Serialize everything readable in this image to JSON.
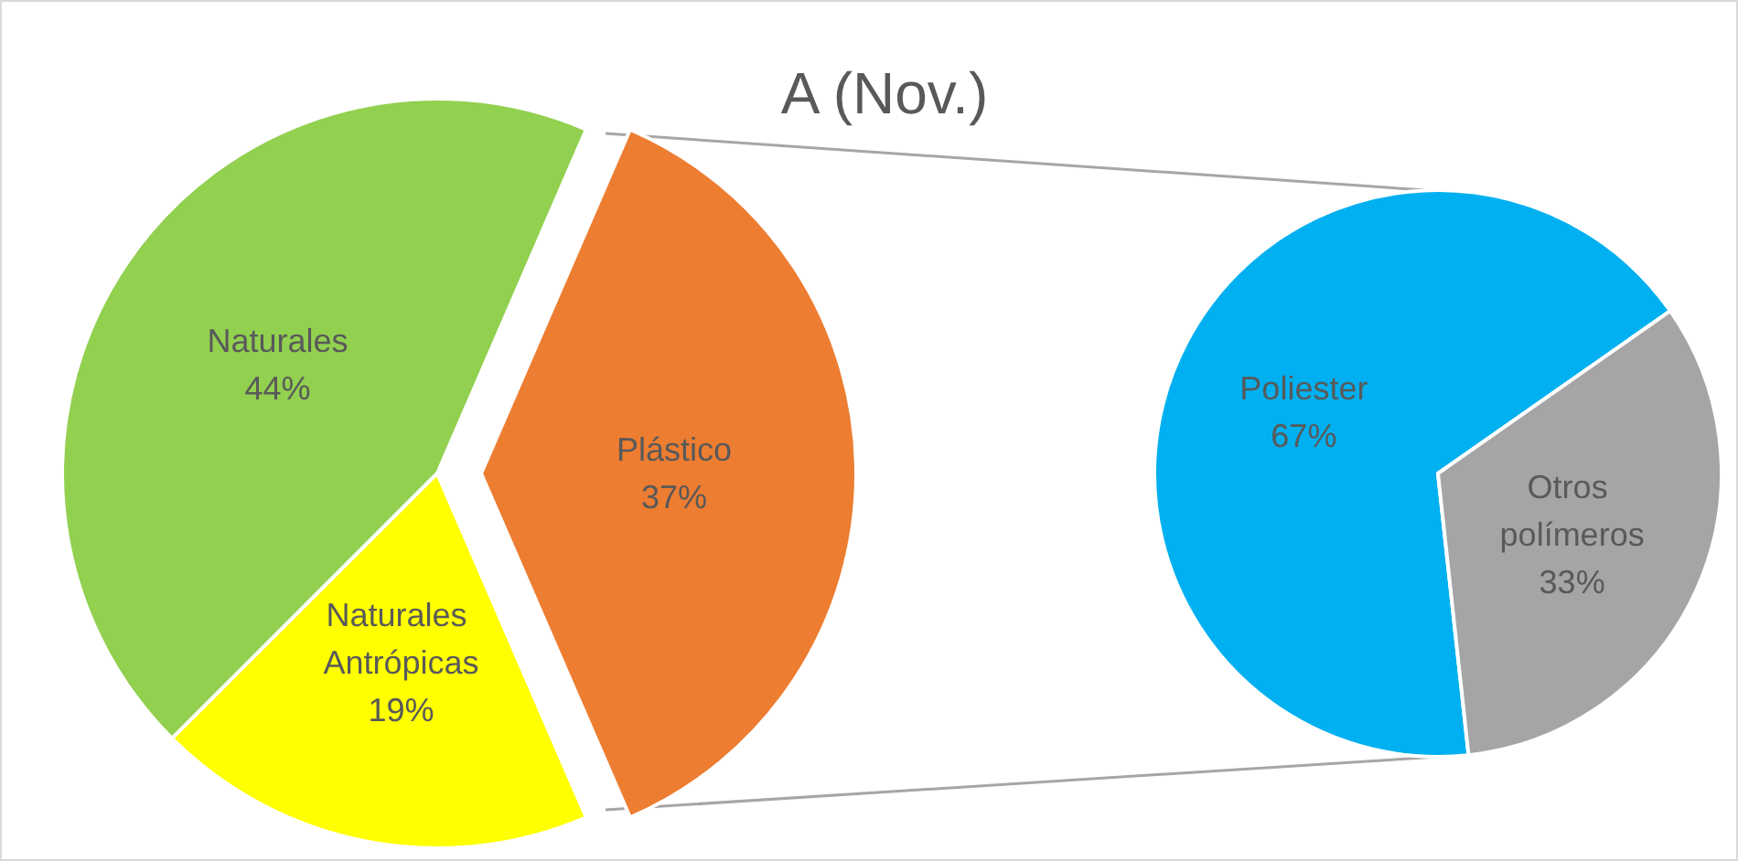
{
  "chart_data": [
    {
      "type": "pie",
      "title": "A (Nov.)",
      "categories": [
        "Naturales",
        "Naturales Antrópicas",
        "Plástico"
      ],
      "values": [
        44,
        19,
        37
      ],
      "colors": [
        "#92d050",
        "#ffff00",
        "#ed7d31"
      ],
      "value_labels": [
        "44%",
        "19%",
        "37%"
      ]
    },
    {
      "type": "pie",
      "categories": [
        "Poliester",
        "Otros polímeros"
      ],
      "values": [
        67,
        33
      ],
      "colors": [
        "#00b0f0",
        "#a5a5a5"
      ],
      "value_labels": [
        "67%",
        "33%"
      ]
    }
  ]
}
